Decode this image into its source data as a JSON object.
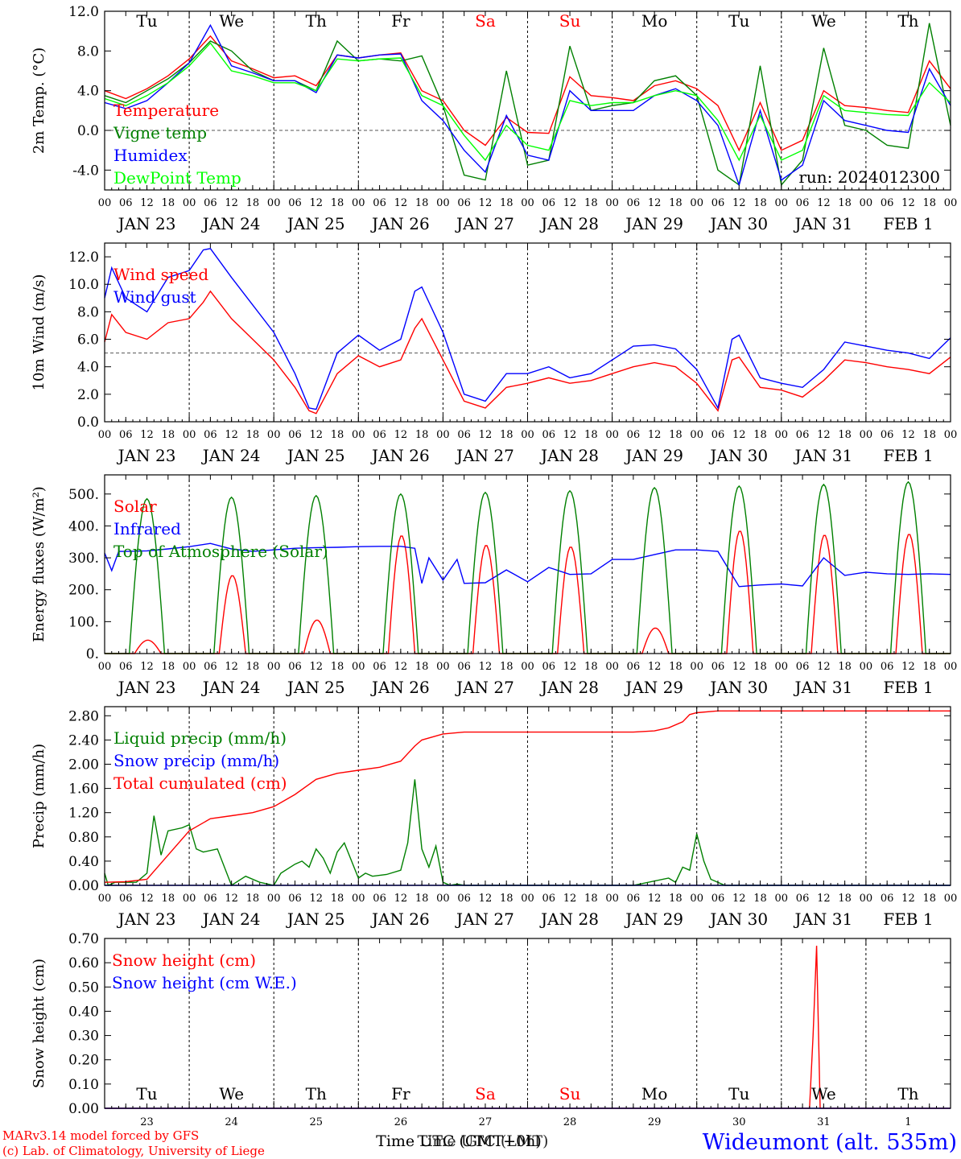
{
  "colors": {
    "red": "#ff0000",
    "green": "#008000",
    "blue": "#0000ff",
    "lime": "#00ff00",
    "axis": "#000000"
  },
  "day_names": [
    "Tu",
    "We",
    "Th",
    "Fr",
    "Sa",
    "Su",
    "Mo",
    "Tu",
    "We",
    "Th"
  ],
  "day_name_colors": [
    "#000000",
    "#000000",
    "#000000",
    "#000000",
    "#ff0000",
    "#ff0000",
    "#000000",
    "#000000",
    "#000000",
    "#000000"
  ],
  "date_labels": [
    "JAN 23",
    "JAN 24",
    "JAN 25",
    "JAN 26",
    "JAN 27",
    "JAN 28",
    "JAN 29",
    "JAN 30",
    "JAN 31",
    "FEB  1"
  ],
  "day_numbers": [
    "23",
    "24",
    "25",
    "26",
    "27",
    "28",
    "29",
    "30",
    "31",
    "1"
  ],
  "hour_labels": [
    "00",
    "06",
    "12",
    "18"
  ],
  "footer": {
    "model": "MARv3.14 model forced by GFS",
    "lab": "(c) Lab. of Climatology, University of Liege",
    "time_axis_a": "Time UTC (GMT+0h)",
    "time_axis_b": "Time UTC (LMT)",
    "station": "Wideumont (alt. 535m)"
  },
  "chart_data": [
    {
      "type": "line",
      "ylabel": "2m Temp. (°C)",
      "ylim": [
        -6.0,
        12.0
      ],
      "yticks": [
        "12.0",
        "8.0",
        "4.0",
        "0.0",
        "-4.0"
      ],
      "ytick_values": [
        12,
        8,
        4,
        0,
        -4
      ],
      "ref_line": 0,
      "annotation": "run: 2024012300",
      "x_unit": "hours since JAN 23 00 UTC",
      "series": [
        {
          "name": "Temperature",
          "color": "#ff0000",
          "x": [
            0,
            6,
            12,
            18,
            24,
            30,
            36,
            42,
            48,
            54,
            60,
            66,
            72,
            78,
            84,
            90,
            96,
            102,
            108,
            114,
            120,
            126,
            132,
            138,
            144,
            150,
            156,
            162,
            168,
            174,
            180,
            186,
            192,
            198,
            204,
            210,
            216,
            222,
            228,
            234,
            240
          ],
          "y": [
            4.0,
            3.2,
            4.2,
            5.5,
            7.2,
            9.5,
            7.0,
            6.2,
            5.3,
            5.5,
            4.5,
            7.6,
            7.3,
            7.6,
            7.8,
            4.0,
            3.0,
            0.0,
            -1.5,
            1.3,
            -0.2,
            -0.3,
            5.4,
            3.5,
            3.3,
            3.0,
            4.5,
            5.0,
            4.2,
            2.5,
            -2.0,
            2.8,
            -2.0,
            -1.0,
            4.0,
            2.5,
            2.3,
            2.0,
            1.8,
            7.0,
            4.2
          ]
        },
        {
          "name": "Vigne temp",
          "color": "#008000",
          "x": [
            0,
            6,
            12,
            18,
            24,
            30,
            36,
            42,
            48,
            54,
            60,
            66,
            72,
            78,
            84,
            90,
            96,
            102,
            108,
            114,
            120,
            126,
            132,
            138,
            144,
            150,
            156,
            162,
            168,
            174,
            180,
            186,
            192,
            198,
            204,
            210,
            216,
            222,
            228,
            234,
            240
          ],
          "y": [
            3.5,
            2.8,
            4.0,
            5.2,
            6.8,
            9.0,
            8.0,
            6.0,
            5.0,
            5.0,
            4.0,
            9.0,
            7.0,
            7.2,
            7.0,
            7.5,
            2.5,
            -4.5,
            -5.0,
            6.0,
            -3.5,
            -3.0,
            8.5,
            2.0,
            2.5,
            2.8,
            5.0,
            5.5,
            3.5,
            -4.0,
            -5.5,
            6.5,
            -5.5,
            -3.0,
            8.3,
            0.5,
            0.0,
            -1.5,
            -1.8,
            10.8,
            0.5
          ]
        },
        {
          "name": "Humidex",
          "color": "#0000ff",
          "x": [
            0,
            6,
            12,
            18,
            24,
            30,
            36,
            42,
            48,
            54,
            60,
            66,
            72,
            78,
            84,
            90,
            96,
            102,
            108,
            114,
            120,
            126,
            132,
            138,
            144,
            150,
            156,
            162,
            168,
            174,
            180,
            186,
            192,
            198,
            204,
            210,
            216,
            222,
            228,
            234,
            240
          ],
          "y": [
            2.8,
            2.2,
            3.0,
            4.8,
            6.8,
            10.6,
            6.5,
            5.8,
            5.0,
            5.0,
            3.8,
            7.6,
            7.3,
            7.6,
            7.7,
            3.0,
            1.0,
            -2.0,
            -4.2,
            1.5,
            -2.5,
            -3.0,
            4.0,
            2.0,
            2.0,
            2.0,
            3.5,
            4.2,
            3.0,
            0.5,
            -5.5,
            2.0,
            -5.0,
            -3.5,
            3.0,
            1.0,
            0.5,
            0.0,
            -0.2,
            6.2,
            2.5
          ]
        },
        {
          "name": "DewPoint Temp",
          "color": "#00ff00",
          "x": [
            0,
            6,
            12,
            18,
            24,
            30,
            36,
            42,
            48,
            54,
            60,
            66,
            72,
            78,
            84,
            90,
            96,
            102,
            108,
            114,
            120,
            126,
            132,
            138,
            144,
            150,
            156,
            162,
            168,
            174,
            180,
            186,
            192,
            198,
            204,
            210,
            216,
            222,
            228,
            234,
            240
          ],
          "y": [
            3.2,
            2.5,
            3.5,
            4.8,
            6.5,
            8.8,
            6.0,
            5.5,
            4.8,
            4.8,
            4.0,
            7.2,
            7.0,
            7.2,
            7.3,
            3.5,
            2.5,
            -0.5,
            -3.0,
            0.5,
            -1.5,
            -2.0,
            3.0,
            2.5,
            2.8,
            2.8,
            3.5,
            4.0,
            3.5,
            1.0,
            -3.0,
            1.5,
            -3.0,
            -2.0,
            3.5,
            2.0,
            1.8,
            1.6,
            1.5,
            4.8,
            2.8
          ]
        }
      ]
    },
    {
      "type": "line",
      "ylabel": "10m Wind (m/s)",
      "ylim": [
        0,
        13.0
      ],
      "yticks": [
        "12.0",
        "10.0",
        "8.0",
        "6.0",
        "4.0",
        "2.0",
        "0.0"
      ],
      "ytick_values": [
        12,
        10,
        8,
        6,
        4,
        2,
        0
      ],
      "ref_line": 5,
      "series": [
        {
          "name": "Wind speed",
          "color": "#ff0000",
          "x": [
            0,
            2,
            6,
            12,
            18,
            24,
            28,
            30,
            36,
            42,
            48,
            54,
            58,
            60,
            66,
            72,
            78,
            84,
            88,
            90,
            96,
            102,
            108,
            114,
            120,
            126,
            132,
            138,
            144,
            150,
            156,
            162,
            168,
            174,
            178,
            180,
            186,
            192,
            198,
            204,
            210,
            216,
            222,
            228,
            234,
            240
          ],
          "y": [
            5.8,
            7.8,
            6.5,
            6.0,
            7.2,
            7.5,
            8.7,
            9.5,
            7.5,
            6.0,
            4.5,
            2.5,
            0.8,
            0.6,
            3.5,
            4.8,
            4.0,
            4.5,
            6.8,
            7.5,
            4.5,
            1.5,
            1.0,
            2.5,
            2.8,
            3.2,
            2.8,
            3.0,
            3.5,
            4.0,
            4.3,
            4.0,
            2.8,
            0.8,
            4.5,
            4.7,
            2.5,
            2.3,
            1.8,
            3.0,
            4.5,
            4.3,
            4.0,
            3.8,
            3.5,
            4.7
          ]
        },
        {
          "name": "Wind gust",
          "color": "#0000ff",
          "x": [
            0,
            2,
            6,
            12,
            18,
            24,
            28,
            30,
            36,
            42,
            48,
            54,
            58,
            60,
            66,
            72,
            78,
            84,
            88,
            90,
            96,
            102,
            108,
            114,
            120,
            126,
            132,
            138,
            144,
            150,
            156,
            162,
            168,
            174,
            178,
            180,
            186,
            192,
            198,
            204,
            210,
            216,
            222,
            228,
            234,
            240
          ],
          "y": [
            9.0,
            11.2,
            9.0,
            8.0,
            10.5,
            11.0,
            12.5,
            12.6,
            10.5,
            8.5,
            6.5,
            3.5,
            1.0,
            0.9,
            5.0,
            6.3,
            5.2,
            6.0,
            9.5,
            9.8,
            6.5,
            2.0,
            1.5,
            3.5,
            3.5,
            4.0,
            3.2,
            3.5,
            4.5,
            5.5,
            5.6,
            5.3,
            3.8,
            1.0,
            6.0,
            6.3,
            3.2,
            2.8,
            2.5,
            3.8,
            5.8,
            5.5,
            5.2,
            5.0,
            4.6,
            6.1
          ]
        }
      ]
    },
    {
      "type": "line",
      "ylabel": "Energy fluxes (W/m²)",
      "ylim": [
        0,
        560
      ],
      "yticks": [
        "500.",
        "400.",
        "300.",
        "200.",
        "100.",
        "0."
      ],
      "ytick_values": [
        500,
        400,
        300,
        200,
        100,
        0
      ],
      "series": [
        {
          "name": "Solar",
          "color": "#ff0000",
          "day_peaks": [
            42,
            245,
            105,
            370,
            340,
            335,
            80,
            385,
            372,
            375
          ]
        },
        {
          "name": "Infrared",
          "color": "#0000ff",
          "x": [
            0,
            2,
            4,
            6,
            12,
            18,
            24,
            30,
            36,
            42,
            48,
            54,
            60,
            66,
            72,
            78,
            84,
            88,
            90,
            92,
            96,
            100,
            102,
            108,
            114,
            120,
            126,
            132,
            138,
            144,
            150,
            156,
            162,
            168,
            174,
            180,
            186,
            192,
            198,
            204,
            210,
            216,
            222,
            228,
            234,
            240
          ],
          "y": [
            315,
            260,
            320,
            320,
            322,
            328,
            335,
            345,
            328,
            320,
            325,
            330,
            332,
            333,
            335,
            336,
            336,
            330,
            220,
            300,
            230,
            295,
            220,
            222,
            262,
            225,
            270,
            248,
            250,
            295,
            295,
            310,
            325,
            325,
            320,
            210,
            215,
            218,
            212,
            300,
            245,
            255,
            250,
            248,
            250,
            248
          ]
        },
        {
          "name": "Top of Atmosphere (Solar)",
          "color": "#008000",
          "day_peaks": [
            485,
            490,
            495,
            500,
            505,
            510,
            520,
            525,
            530,
            538
          ]
        }
      ]
    },
    {
      "type": "line",
      "ylabel": "Precip (mm/h)",
      "ylim": [
        0,
        2.95
      ],
      "yticks": [
        "2.80",
        "2.40",
        "2.00",
        "1.60",
        "1.20",
        "0.80",
        "0.40",
        "0.00"
      ],
      "ytick_values": [
        2.8,
        2.4,
        2.0,
        1.6,
        1.2,
        0.8,
        0.4,
        0.0
      ],
      "series": [
        {
          "name": "Liquid precip (mm/h)",
          "color": "#008000",
          "x": [
            0,
            1,
            3,
            9,
            12,
            14,
            16,
            18,
            22,
            24,
            26,
            28,
            32,
            36,
            40,
            44,
            48,
            50,
            54,
            56,
            58,
            60,
            62,
            64,
            66,
            68,
            72,
            74,
            76,
            80,
            84,
            86,
            88,
            90,
            92,
            94,
            96,
            98,
            100,
            102,
            106,
            110,
            150,
            160,
            162,
            164,
            166,
            168,
            170,
            172,
            176,
            180,
            240
          ],
          "y": [
            0.2,
            0.0,
            0.05,
            0.05,
            0.2,
            1.15,
            0.5,
            0.9,
            0.95,
            1.0,
            0.6,
            0.55,
            0.6,
            0.0,
            0.15,
            0.05,
            0.0,
            0.2,
            0.35,
            0.4,
            0.3,
            0.6,
            0.45,
            0.2,
            0.55,
            0.7,
            0.12,
            0.2,
            0.15,
            0.18,
            0.25,
            0.7,
            1.75,
            0.6,
            0.3,
            0.65,
            0.05,
            0.0,
            0.02,
            0.0,
            0.0,
            0.0,
            0.0,
            0.12,
            0.05,
            0.3,
            0.25,
            0.85,
            0.4,
            0.1,
            0.0,
            0.0,
            0.0
          ]
        },
        {
          "name": "Snow precip (mm/h)",
          "color": "#0000ff",
          "x": [
            0,
            240
          ],
          "y": [
            0.0,
            0.0
          ]
        },
        {
          "name": "Total cumulated (cm)",
          "color": "#ff0000",
          "x": [
            0,
            6,
            12,
            18,
            24,
            30,
            36,
            42,
            48,
            54,
            60,
            66,
            72,
            78,
            84,
            88,
            90,
            96,
            102,
            108,
            114,
            120,
            126,
            132,
            138,
            144,
            150,
            156,
            160,
            164,
            166,
            168,
            174,
            180,
            186,
            192,
            198,
            204,
            210,
            216,
            222,
            228,
            234,
            240
          ],
          "y": [
            0.05,
            0.06,
            0.1,
            0.5,
            0.9,
            1.1,
            1.15,
            1.2,
            1.3,
            1.5,
            1.75,
            1.85,
            1.9,
            1.95,
            2.05,
            2.3,
            2.4,
            2.5,
            2.53,
            2.53,
            2.53,
            2.53,
            2.53,
            2.53,
            2.53,
            2.53,
            2.53,
            2.55,
            2.6,
            2.7,
            2.82,
            2.85,
            2.88,
            2.88,
            2.88,
            2.88,
            2.88,
            2.88,
            2.88,
            2.88,
            2.88,
            2.88,
            2.88,
            2.88
          ]
        }
      ]
    },
    {
      "type": "line",
      "ylabel": "Snow height (cm)",
      "ylim": [
        0,
        0.7
      ],
      "yticks": [
        "0.70",
        "0.60",
        "0.50",
        "0.40",
        "0.30",
        "0.20",
        "0.10",
        "0.00"
      ],
      "ytick_values": [
        0.7,
        0.6,
        0.5,
        0.4,
        0.3,
        0.2,
        0.1,
        0.0
      ],
      "series": [
        {
          "name": "Snow height (cm)",
          "color": "#ff0000",
          "x": [
            0,
            200,
            201,
            202,
            203,
            240
          ],
          "y": [
            0,
            0,
            0.3,
            0.67,
            0,
            0
          ]
        },
        {
          "name": "Snow height (cm W.E.)",
          "color": "#0000ff",
          "x": [
            0,
            240
          ],
          "y": [
            0,
            0
          ]
        }
      ]
    }
  ]
}
